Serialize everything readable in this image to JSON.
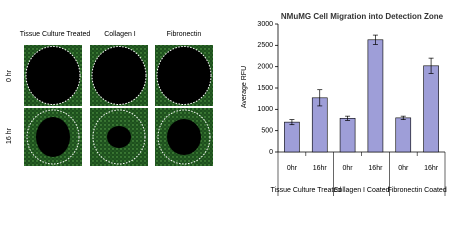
{
  "panel": {
    "column_labels": [
      "Tissue Culture Treated",
      "Collagen I",
      "Fibronectin"
    ],
    "row_labels": [
      "0 hr",
      "16 hr"
    ]
  },
  "chart_data": {
    "type": "bar",
    "title": "NMuMG Cell Migration into Detection Zone",
    "y_label": "Average RFU",
    "categories": [
      "0hr",
      "16hr",
      "0hr",
      "16hr",
      "0hr",
      "16hr"
    ],
    "groups": [
      "Tissue Culture Treated",
      "Collagen I Coated",
      "Fibronectin Coated"
    ],
    "values": [
      700,
      1270,
      790,
      2630,
      800,
      2020
    ],
    "errors": [
      60,
      190,
      50,
      110,
      40,
      180
    ],
    "color": "#9e9ed8",
    "ylim": [
      0,
      3000
    ],
    "yticks": [
      0,
      500,
      1000,
      1500,
      2000,
      2500,
      3000
    ],
    "grid": false
  }
}
